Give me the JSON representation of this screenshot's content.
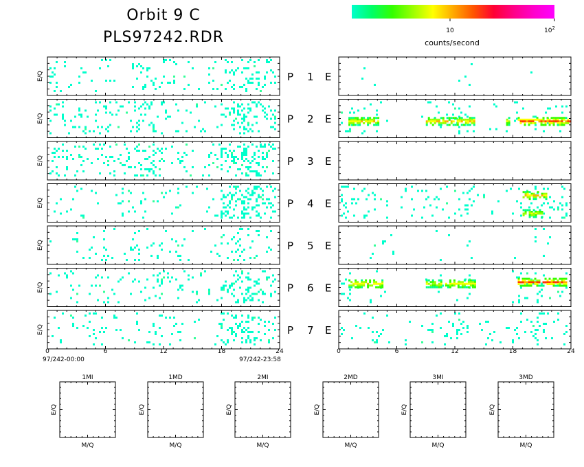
{
  "header": {
    "title_line1": "Orbit  9  C",
    "title_line2": "PLS97242.RDR"
  },
  "colorbar": {
    "label": "counts/second",
    "tick_low": "10",
    "tick_high_base": "10",
    "tick_high_exp": "2",
    "stops": [
      "#00ffcc",
      "#00ff66",
      "#33ff00",
      "#99ff00",
      "#ffff00",
      "#ffaa00",
      "#ff5500",
      "#ff0033",
      "#ff0088",
      "#ff00cc",
      "#ff00ff"
    ]
  },
  "ylabel": "E/Q",
  "rows": [
    {
      "p": "P",
      "n": "1",
      "e": "E"
    },
    {
      "p": "P",
      "n": "2",
      "e": "E"
    },
    {
      "p": "P",
      "n": "3",
      "e": "E"
    },
    {
      "p": "P",
      "n": "4",
      "e": "E"
    },
    {
      "p": "P",
      "n": "5",
      "e": "E"
    },
    {
      "p": "P",
      "n": "6",
      "e": "E"
    },
    {
      "p": "P",
      "n": "7",
      "e": "E"
    }
  ],
  "xaxis": {
    "ticks": [
      "0",
      "6",
      "12",
      "18",
      "24"
    ],
    "start_label": "97/242-00:00",
    "end_label": "97/242-23:58"
  },
  "mq_panels": [
    {
      "title": "1MI"
    },
    {
      "title": "1MD"
    },
    {
      "title": "2MI"
    },
    {
      "title": "2MD"
    },
    {
      "title": "3MI"
    },
    {
      "title": "3MD"
    }
  ],
  "mq_xlabel": "M/Q",
  "mq_ylabel": "E/Q",
  "chart_data": {
    "type": "heatmap",
    "title": "Orbit  9  C",
    "subtitle": "PLS97242.RDR",
    "x_unit": "hours",
    "xlim": [
      0,
      24
    ],
    "color_scale": {
      "label": "counts/second",
      "log": true,
      "range": [
        1,
        100
      ]
    },
    "colors": {
      "low": "#00ffcc",
      "mid": "#33ff00",
      "band": "#66ff00",
      "high": "#ff00ff"
    },
    "left_panels": [
      {
        "row": 1,
        "density": [
          0.08,
          0.06,
          0.03,
          0.05,
          0.09,
          0.1,
          0.05,
          0.04,
          0.03,
          0.1,
          0.16,
          0.1
        ]
      },
      {
        "row": 2,
        "density": [
          0.12,
          0.1,
          0.07,
          0.09,
          0.12,
          0.14,
          0.1,
          0.06,
          0.05,
          0.18,
          0.26,
          0.16
        ]
      },
      {
        "row": 3,
        "density": [
          0.14,
          0.12,
          0.08,
          0.1,
          0.14,
          0.16,
          0.12,
          0.07,
          0.06,
          0.22,
          0.32,
          0.2
        ]
      },
      {
        "row": 4,
        "density": [
          0.06,
          0.05,
          0.03,
          0.05,
          0.07,
          0.08,
          0.05,
          0.03,
          0.04,
          0.2,
          0.3,
          0.16
        ]
      },
      {
        "row": 5,
        "density": [
          0.01,
          0.03,
          0.03,
          0.04,
          0.05,
          0.06,
          0.04,
          0.02,
          0.02,
          0.1,
          0.14,
          0.08
        ]
      },
      {
        "row": 6,
        "density": [
          0.07,
          0.06,
          0.04,
          0.05,
          0.07,
          0.09,
          0.06,
          0.04,
          0.03,
          0.18,
          0.26,
          0.16
        ]
      },
      {
        "row": 7,
        "density": [
          0.08,
          0.07,
          0.05,
          0.05,
          0.07,
          0.08,
          0.05,
          0.03,
          0.03,
          0.18,
          0.24,
          0.14
        ]
      }
    ],
    "right_panels": [
      {
        "row": 1,
        "density": [
          0.0,
          0.01,
          0.0,
          0.0,
          0.0,
          0.0,
          0.01,
          0.0,
          0.0,
          0.01,
          0.0,
          0.02
        ]
      },
      {
        "row": 2,
        "density": [
          0.05,
          0.04,
          0.02,
          0.0,
          0.02,
          0.04,
          0.06,
          0.01,
          0.02,
          0.06,
          0.1,
          0.06
        ],
        "bands": [
          {
            "x0": 1.0,
            "x1": 4.0,
            "y": 0.55,
            "intensity": 0.5
          },
          {
            "x0": 9.0,
            "x1": 14.0,
            "y": 0.55,
            "intensity": 0.55
          },
          {
            "x0": 17.3,
            "x1": 17.7,
            "y": 0.55,
            "intensity": 0.4
          },
          {
            "x0": 18.5,
            "x1": 24.0,
            "y": 0.55,
            "intensity": 0.7
          }
        ]
      },
      {
        "row": 3,
        "density": [
          0,
          0,
          0,
          0,
          0,
          0,
          0,
          0,
          0,
          0,
          0,
          0
        ]
      },
      {
        "row": 4,
        "density": [
          0.1,
          0.08,
          0.05,
          0.04,
          0.04,
          0.06,
          0.1,
          0.04,
          0.03,
          0.12,
          0.2,
          0.12
        ],
        "bands": [
          {
            "x0": 19.0,
            "x1": 21.5,
            "y": 0.28,
            "intensity": 0.55
          },
          {
            "x0": 19.0,
            "x1": 21.0,
            "y": 0.75,
            "intensity": 0.4
          }
        ]
      },
      {
        "row": 5,
        "density": [
          0.0,
          0.01,
          0.01,
          0.0,
          0.0,
          0.01,
          0.01,
          0.0,
          0.0,
          0.01,
          0.03,
          0.01
        ]
      },
      {
        "row": 6,
        "density": [
          0.04,
          0.03,
          0.02,
          0.0,
          0.01,
          0.04,
          0.06,
          0.01,
          0.01,
          0.06,
          0.12,
          0.06
        ],
        "bands": [
          {
            "x0": 1.0,
            "x1": 4.5,
            "y": 0.38,
            "intensity": 0.5
          },
          {
            "x0": 9.0,
            "x1": 10.5,
            "y": 0.38,
            "intensity": 0.45
          },
          {
            "x0": 11.0,
            "x1": 14.0,
            "y": 0.38,
            "intensity": 0.5
          },
          {
            "x0": 18.5,
            "x1": 23.5,
            "y": 0.34,
            "intensity": 0.7
          }
        ]
      },
      {
        "row": 7,
        "density": [
          0.03,
          0.05,
          0.04,
          0.02,
          0.03,
          0.05,
          0.07,
          0.03,
          0.03,
          0.06,
          0.1,
          0.07
        ]
      }
    ],
    "mq_panels": [
      {
        "title": "1MI",
        "xlabel": "M/Q",
        "ylabel": "E/Q",
        "values": []
      },
      {
        "title": "1MD",
        "xlabel": "M/Q",
        "ylabel": "E/Q",
        "values": []
      },
      {
        "title": "2MI",
        "xlabel": "M/Q",
        "ylabel": "E/Q",
        "values": []
      },
      {
        "title": "2MD",
        "xlabel": "M/Q",
        "ylabel": "E/Q",
        "values": []
      },
      {
        "title": "3MI",
        "xlabel": "M/Q",
        "ylabel": "E/Q",
        "values": []
      },
      {
        "title": "3MD",
        "xlabel": "M/Q",
        "ylabel": "E/Q",
        "values": []
      }
    ]
  }
}
